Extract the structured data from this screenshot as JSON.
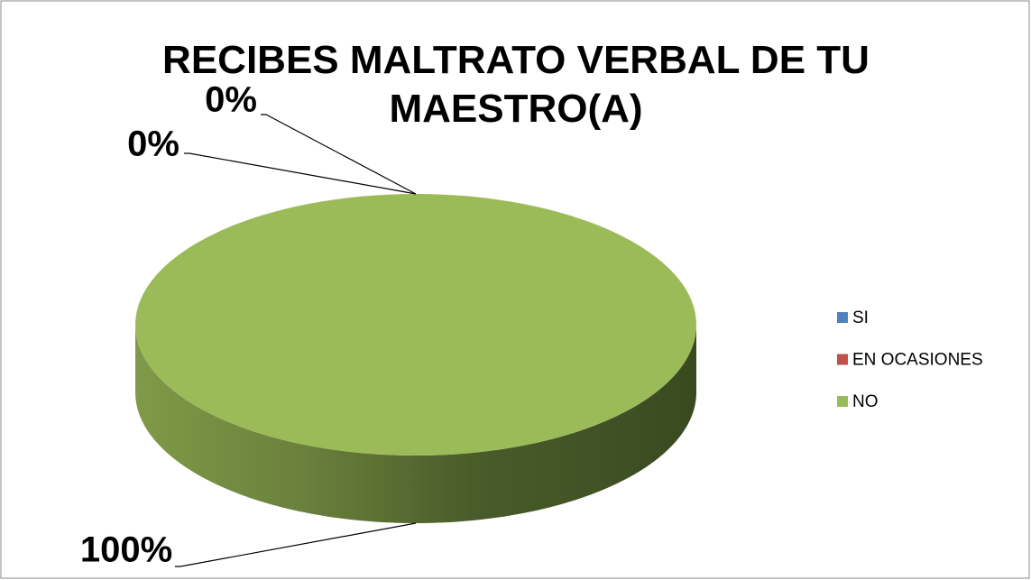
{
  "chart_data": {
    "type": "pie3d",
    "title": "RECIBES MALTRATO VERBAL DE TU MAESTRO(A)",
    "categories": [
      "SI",
      "EN OCASIONES",
      "NO"
    ],
    "values": [
      0,
      0,
      100
    ],
    "value_labels": [
      "0%",
      "0%",
      "100%"
    ],
    "colors": [
      "#4f81bd",
      "#c0504d",
      "#9bbb59"
    ],
    "legend": "right"
  }
}
